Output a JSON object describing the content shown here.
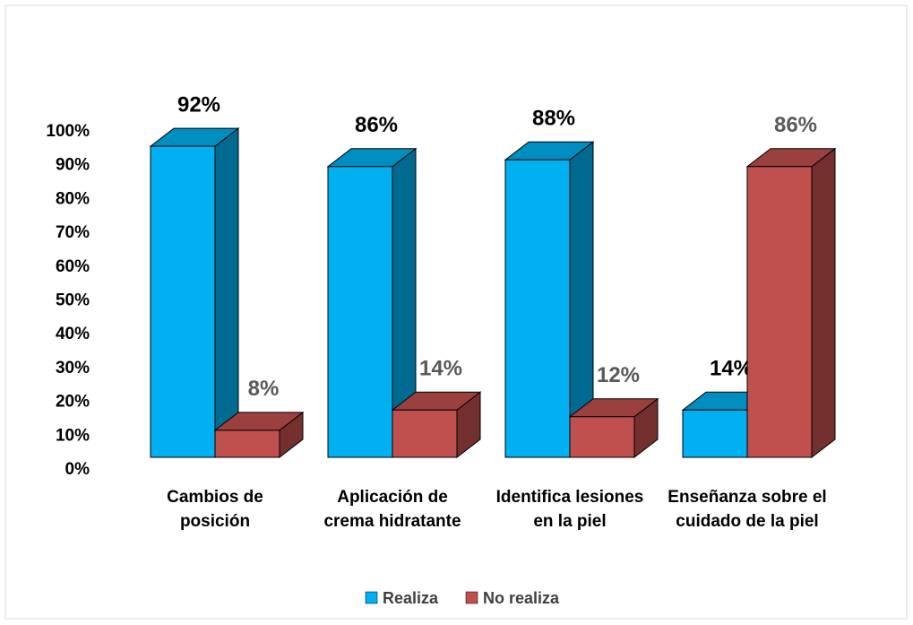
{
  "chart_data": {
    "type": "bar3d",
    "categories": [
      "Cambios de posición",
      "Aplicación de crema hidratante",
      "Identifica lesiones en la piel",
      "Enseñanza sobre el cuidado de la piel"
    ],
    "series": [
      {
        "name": "Realiza",
        "color": "#00b0f0",
        "values": [
          92,
          86,
          88,
          14
        ],
        "value_labels": [
          "92%",
          "86%",
          "88%",
          "14%"
        ]
      },
      {
        "name": "No realiza",
        "color": "#c0504d",
        "values": [
          8,
          14,
          12,
          86
        ],
        "value_labels": [
          "8%",
          "14%",
          "12%",
          "86%"
        ]
      }
    ],
    "ylim": [
      0,
      100
    ],
    "yticks": [
      {
        "value": 0,
        "label": "0%"
      },
      {
        "value": 10,
        "label": "10%"
      },
      {
        "value": 20,
        "label": "20%"
      },
      {
        "value": 30,
        "label": "30%"
      },
      {
        "value": 40,
        "label": "40%"
      },
      {
        "value": 50,
        "label": "50%"
      },
      {
        "value": 60,
        "label": "60%"
      },
      {
        "value": 70,
        "label": "70%"
      },
      {
        "value": 80,
        "label": "80%"
      },
      {
        "value": 90,
        "label": "90%"
      },
      {
        "value": 100,
        "label": "100%"
      }
    ],
    "legend": "bottom"
  }
}
